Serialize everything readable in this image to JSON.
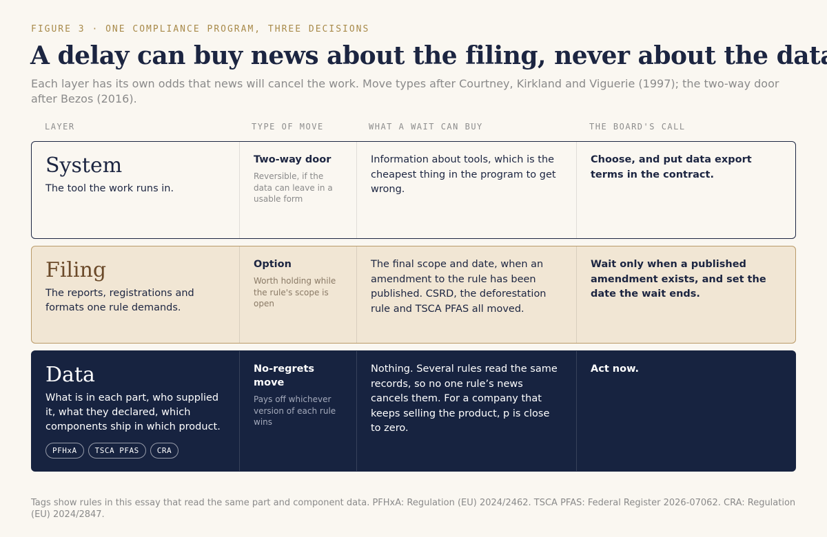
{
  "figure": {
    "eyebrow": "FIGURE 3 · ONE COMPLIANCE PROGRAM, THREE DECISIONS",
    "title": "A delay can buy news about the filing, never about the data",
    "subtitle": "Each layer has its own odds that news will cancel the work. Move types after Courtney, Kirkland and Viguerie (1997); the two-way door after Bezos (2016)."
  },
  "columns": {
    "layer": "LAYER",
    "move": "TYPE OF MOVE",
    "wait": "WHAT A WAIT CAN BUY",
    "call": "THE BOARD'S CALL"
  },
  "rows": [
    {
      "layer": "System",
      "description": "The tool the work runs in.",
      "move": "Two-way door",
      "move_note": "Reversible, if the data can leave in a usable form",
      "wait": "Information about tools, which is the cheapest thing in the program to get wrong.",
      "call": "Choose, and put data export terms in the contract."
    },
    {
      "layer": "Filing",
      "description": "The reports, registrations and formats one rule demands.",
      "move": "Option",
      "move_note": "Worth holding while the rule's scope is open",
      "wait": "The final scope and date, when an amendment to the rule has been published. CSRD, the deforestation rule and TSCA PFAS all moved.",
      "call": "Wait only when a published amendment exists, and set the date the wait ends."
    },
    {
      "layer": "Data",
      "description": "What is in each part, who supplied it, what they declared, which components ship in which product.",
      "tags": [
        "PFHxA",
        "TSCA PFAS",
        "CRA"
      ],
      "move": "No-regrets move",
      "move_note": "Pays off whichever version of each rule wins",
      "wait": "Nothing. Several rules read the same records, so no one rule’s news cancels them. For a company that keeps selling the product, p is close to zero.",
      "call": "Act now."
    }
  ],
  "footnote": "Tags show rules in this essay that read the same part and component data. PFHxA: Regulation (EU) 2024/2462. TSCA PFAS: Federal Register 2026-07062. CRA: Regulation (EU) 2024/2847."
}
